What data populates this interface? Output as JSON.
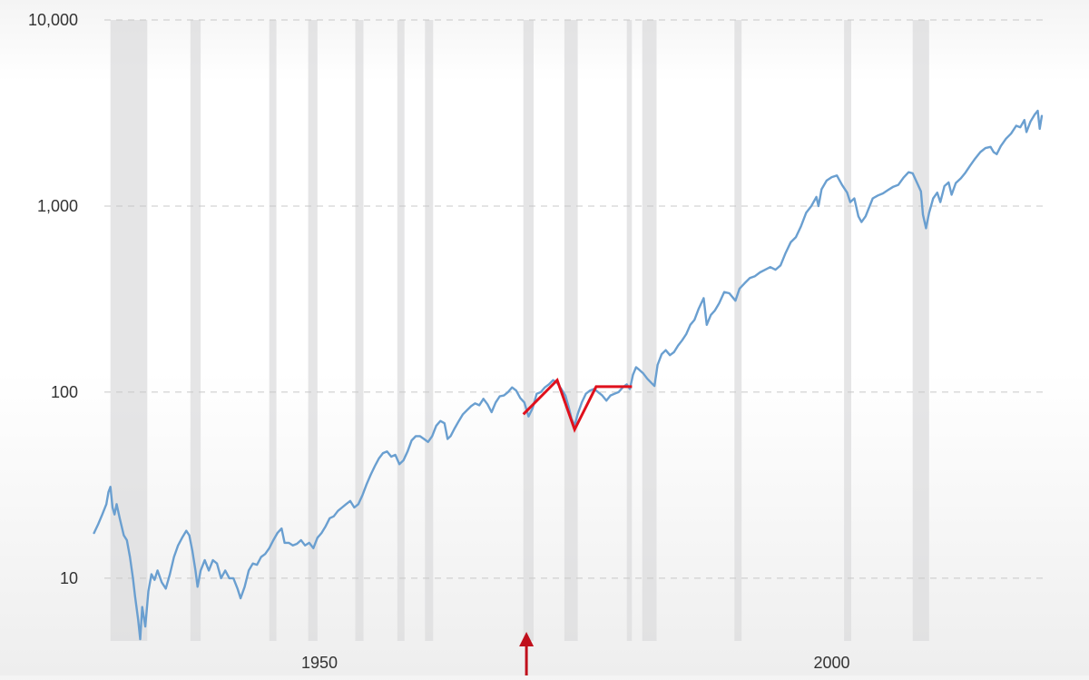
{
  "chart_data": {
    "type": "line",
    "title": "",
    "xlabel": "",
    "ylabel": "",
    "y_scale": "log",
    "ylim": [
      4.6,
      10000
    ],
    "xlim": [
      1927.5,
      2020.5
    ],
    "y_ticks": [
      {
        "value": 10,
        "label": "10"
      },
      {
        "value": 100,
        "label": "100"
      },
      {
        "value": 1000,
        "label": "1,000"
      },
      {
        "value": 10000,
        "label": "10,000"
      }
    ],
    "x_ticks": [
      {
        "value": 1950,
        "label": "1950"
      },
      {
        "value": 2000,
        "label": "2000"
      }
    ],
    "grid": "horizontal-dashed",
    "legend": "none",
    "colors": {
      "series": "#6a9fd0",
      "recession": "#dcdcde",
      "annotation": "#e0101c",
      "arrow": "#c0101c",
      "grid": "#c8c8c8"
    },
    "recession_bands": [
      [
        1929.6,
        1933.2
      ],
      [
        1937.4,
        1938.4
      ],
      [
        1945.1,
        1945.8
      ],
      [
        1948.9,
        1949.8
      ],
      [
        1953.5,
        1954.3
      ],
      [
        1957.6,
        1958.3
      ],
      [
        1960.3,
        1961.1
      ],
      [
        1969.9,
        1970.9
      ],
      [
        1973.9,
        1975.2
      ],
      [
        1980.0,
        1980.5
      ],
      [
        1981.5,
        1982.9
      ],
      [
        1990.5,
        1991.2
      ],
      [
        2001.2,
        2001.9
      ],
      [
        2007.9,
        2009.5
      ]
    ],
    "series": [
      {
        "points": [
          [
            1928.0,
            17.5
          ],
          [
            1928.4,
            19.5
          ],
          [
            1928.8,
            22
          ],
          [
            1929.2,
            25
          ],
          [
            1929.4,
            29
          ],
          [
            1929.6,
            31
          ],
          [
            1929.8,
            24
          ],
          [
            1930.0,
            22
          ],
          [
            1930.2,
            25
          ],
          [
            1930.5,
            21
          ],
          [
            1930.9,
            17
          ],
          [
            1931.2,
            16
          ],
          [
            1931.5,
            13
          ],
          [
            1931.8,
            10
          ],
          [
            1932.0,
            8
          ],
          [
            1932.3,
            6
          ],
          [
            1932.5,
            4.7
          ],
          [
            1932.7,
            7
          ],
          [
            1933.0,
            5.5
          ],
          [
            1933.3,
            8.5
          ],
          [
            1933.6,
            10.5
          ],
          [
            1933.9,
            9.8
          ],
          [
            1934.2,
            11
          ],
          [
            1934.6,
            9.5
          ],
          [
            1935.0,
            8.8
          ],
          [
            1935.4,
            10.5
          ],
          [
            1935.8,
            13
          ],
          [
            1936.2,
            15
          ],
          [
            1936.6,
            16.5
          ],
          [
            1937.0,
            18
          ],
          [
            1937.3,
            17
          ],
          [
            1937.6,
            14
          ],
          [
            1937.9,
            11
          ],
          [
            1938.1,
            9
          ],
          [
            1938.4,
            11
          ],
          [
            1938.8,
            12.5
          ],
          [
            1939.2,
            11
          ],
          [
            1939.6,
            12.5
          ],
          [
            1940.0,
            12
          ],
          [
            1940.4,
            10
          ],
          [
            1940.8,
            11
          ],
          [
            1941.2,
            10
          ],
          [
            1941.6,
            10
          ],
          [
            1942.0,
            8.8
          ],
          [
            1942.3,
            7.8
          ],
          [
            1942.7,
            9
          ],
          [
            1943.1,
            11
          ],
          [
            1943.5,
            12
          ],
          [
            1943.9,
            11.8
          ],
          [
            1944.3,
            13
          ],
          [
            1944.7,
            13.5
          ],
          [
            1945.1,
            14.5
          ],
          [
            1945.5,
            16
          ],
          [
            1945.9,
            17.5
          ],
          [
            1946.3,
            18.5
          ],
          [
            1946.6,
            15.5
          ],
          [
            1947.0,
            15.5
          ],
          [
            1947.4,
            15
          ],
          [
            1947.8,
            15.3
          ],
          [
            1948.2,
            16
          ],
          [
            1948.6,
            15
          ],
          [
            1949.0,
            15.5
          ],
          [
            1949.4,
            14.5
          ],
          [
            1949.8,
            16.5
          ],
          [
            1950.2,
            17.5
          ],
          [
            1950.6,
            19
          ],
          [
            1951.0,
            21
          ],
          [
            1951.4,
            21.5
          ],
          [
            1951.8,
            23
          ],
          [
            1952.2,
            24
          ],
          [
            1952.6,
            25
          ],
          [
            1953.0,
            26
          ],
          [
            1953.4,
            24
          ],
          [
            1953.8,
            25
          ],
          [
            1954.2,
            28
          ],
          [
            1954.6,
            32
          ],
          [
            1955.0,
            36
          ],
          [
            1955.4,
            40
          ],
          [
            1955.8,
            44
          ],
          [
            1956.2,
            47
          ],
          [
            1956.6,
            48
          ],
          [
            1957.0,
            45
          ],
          [
            1957.4,
            46
          ],
          [
            1957.8,
            41
          ],
          [
            1958.2,
            43
          ],
          [
            1958.6,
            48
          ],
          [
            1959.0,
            55
          ],
          [
            1959.4,
            58
          ],
          [
            1959.8,
            58
          ],
          [
            1960.2,
            56
          ],
          [
            1960.6,
            54
          ],
          [
            1961.0,
            58
          ],
          [
            1961.4,
            66
          ],
          [
            1961.8,
            70
          ],
          [
            1962.2,
            68
          ],
          [
            1962.5,
            56
          ],
          [
            1962.8,
            58
          ],
          [
            1963.2,
            64
          ],
          [
            1963.6,
            70
          ],
          [
            1964.0,
            76
          ],
          [
            1964.4,
            80
          ],
          [
            1964.8,
            84
          ],
          [
            1965.2,
            87
          ],
          [
            1965.6,
            85
          ],
          [
            1966.0,
            92
          ],
          [
            1966.4,
            86
          ],
          [
            1966.8,
            78
          ],
          [
            1967.2,
            88
          ],
          [
            1967.6,
            95
          ],
          [
            1968.0,
            96
          ],
          [
            1968.4,
            100
          ],
          [
            1968.8,
            106
          ],
          [
            1969.2,
            102
          ],
          [
            1969.6,
            93
          ],
          [
            1970.0,
            88
          ],
          [
            1970.4,
            74
          ],
          [
            1970.8,
            82
          ],
          [
            1971.2,
            98
          ],
          [
            1971.6,
            100
          ],
          [
            1972.0,
            106
          ],
          [
            1972.4,
            110
          ],
          [
            1972.8,
            116
          ],
          [
            1973.2,
            112
          ],
          [
            1973.6,
            104
          ],
          [
            1974.0,
            96
          ],
          [
            1974.3,
            84
          ],
          [
            1974.6,
            72
          ],
          [
            1974.9,
            66
          ],
          [
            1975.2,
            76
          ],
          [
            1975.6,
            88
          ],
          [
            1976.0,
            98
          ],
          [
            1976.4,
            102
          ],
          [
            1976.8,
            104
          ],
          [
            1977.2,
            100
          ],
          [
            1977.6,
            96
          ],
          [
            1978.0,
            90
          ],
          [
            1978.4,
            96
          ],
          [
            1978.8,
            98
          ],
          [
            1979.2,
            100
          ],
          [
            1979.6,
            106
          ],
          [
            1980.0,
            110
          ],
          [
            1980.3,
            104
          ],
          [
            1980.6,
            124
          ],
          [
            1980.9,
            136
          ],
          [
            1981.2,
            132
          ],
          [
            1981.6,
            126
          ],
          [
            1982.0,
            118
          ],
          [
            1982.4,
            112
          ],
          [
            1982.7,
            108
          ],
          [
            1983.0,
            140
          ],
          [
            1983.4,
            160
          ],
          [
            1983.8,
            168
          ],
          [
            1984.2,
            158
          ],
          [
            1984.6,
            164
          ],
          [
            1985.0,
            178
          ],
          [
            1985.4,
            190
          ],
          [
            1985.8,
            205
          ],
          [
            1986.2,
            230
          ],
          [
            1986.6,
            245
          ],
          [
            1987.0,
            280
          ],
          [
            1987.5,
            320
          ],
          [
            1987.8,
            230
          ],
          [
            1988.2,
            260
          ],
          [
            1988.6,
            275
          ],
          [
            1989.0,
            300
          ],
          [
            1989.5,
            345
          ],
          [
            1990.0,
            340
          ],
          [
            1990.6,
            310
          ],
          [
            1991.0,
            360
          ],
          [
            1991.5,
            385
          ],
          [
            1992.0,
            410
          ],
          [
            1992.5,
            420
          ],
          [
            1993.0,
            440
          ],
          [
            1993.5,
            455
          ],
          [
            1994.0,
            470
          ],
          [
            1994.5,
            455
          ],
          [
            1995.0,
            480
          ],
          [
            1995.5,
            560
          ],
          [
            1996.0,
            640
          ],
          [
            1996.5,
            680
          ],
          [
            1997.0,
            780
          ],
          [
            1997.5,
            920
          ],
          [
            1998.0,
            1000
          ],
          [
            1998.5,
            1120
          ],
          [
            1998.7,
            1000
          ],
          [
            1999.0,
            1230
          ],
          [
            1999.5,
            1370
          ],
          [
            2000.0,
            1430
          ],
          [
            2000.5,
            1460
          ],
          [
            2001.0,
            1300
          ],
          [
            2001.5,
            1180
          ],
          [
            2001.8,
            1050
          ],
          [
            2002.2,
            1100
          ],
          [
            2002.6,
            880
          ],
          [
            2002.9,
            820
          ],
          [
            2003.3,
            880
          ],
          [
            2003.7,
            1000
          ],
          [
            2004.0,
            1100
          ],
          [
            2004.5,
            1140
          ],
          [
            2005.0,
            1170
          ],
          [
            2005.5,
            1220
          ],
          [
            2006.0,
            1270
          ],
          [
            2006.5,
            1300
          ],
          [
            2007.0,
            1420
          ],
          [
            2007.5,
            1520
          ],
          [
            2007.9,
            1500
          ],
          [
            2008.3,
            1340
          ],
          [
            2008.7,
            1200
          ],
          [
            2008.9,
            900
          ],
          [
            2009.2,
            760
          ],
          [
            2009.5,
            920
          ],
          [
            2009.9,
            1100
          ],
          [
            2010.3,
            1180
          ],
          [
            2010.6,
            1050
          ],
          [
            2011.0,
            1280
          ],
          [
            2011.4,
            1340
          ],
          [
            2011.7,
            1150
          ],
          [
            2012.1,
            1330
          ],
          [
            2012.6,
            1410
          ],
          [
            2013.0,
            1500
          ],
          [
            2013.5,
            1650
          ],
          [
            2014.0,
            1800
          ],
          [
            2014.5,
            1950
          ],
          [
            2015.0,
            2050
          ],
          [
            2015.5,
            2080
          ],
          [
            2015.8,
            1950
          ],
          [
            2016.1,
            1900
          ],
          [
            2016.5,
            2100
          ],
          [
            2017.0,
            2300
          ],
          [
            2017.5,
            2450
          ],
          [
            2018.0,
            2700
          ],
          [
            2018.4,
            2650
          ],
          [
            2018.8,
            2900
          ],
          [
            2019.0,
            2500
          ],
          [
            2019.4,
            2850
          ],
          [
            2019.8,
            3100
          ],
          [
            2020.1,
            3250
          ],
          [
            2020.3,
            2600
          ],
          [
            2020.5,
            3050
          ]
        ]
      }
    ],
    "annotations": {
      "zigzag": [
        [
          1969.9,
          76
        ],
        [
          1973.2,
          116
        ],
        [
          1974.9,
          63
        ],
        [
          1977.0,
          107
        ],
        [
          1980.5,
          107
        ]
      ],
      "arrow_x": 1970.2
    }
  }
}
